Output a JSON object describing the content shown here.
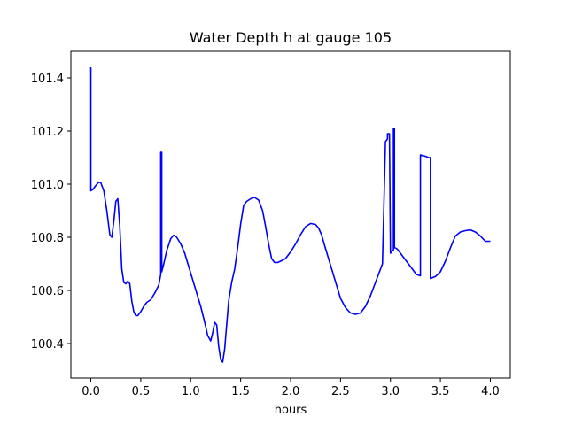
{
  "chart_data": {
    "type": "line",
    "title": "Water Depth h at gauge 105",
    "xlabel": "hours",
    "ylabel": "",
    "xlim": [
      -0.2,
      4.2
    ],
    "ylim": [
      100.27,
      101.5
    ],
    "x_ticks": [
      0.0,
      0.5,
      1.0,
      1.5,
      2.0,
      2.5,
      3.0,
      3.5,
      4.0
    ],
    "x_tick_labels": [
      "0.0",
      "0.5",
      "1.0",
      "1.5",
      "2.0",
      "2.5",
      "3.0",
      "3.5",
      "4.0"
    ],
    "y_ticks": [
      100.4,
      100.6,
      100.8,
      101.0,
      101.2,
      101.4
    ],
    "y_tick_labels": [
      "100.4",
      "100.6",
      "100.8",
      "101.0",
      "101.2",
      "101.4"
    ],
    "grid": false,
    "legend": "none",
    "series": [
      {
        "color": "#0000ff",
        "x": [
          0.0,
          0.0,
          0.0,
          0.02,
          0.05,
          0.08,
          0.1,
          0.13,
          0.16,
          0.19,
          0.21,
          0.23,
          0.25,
          0.27,
          0.29,
          0.31,
          0.33,
          0.35,
          0.37,
          0.39,
          0.41,
          0.43,
          0.45,
          0.47,
          0.5,
          0.53,
          0.56,
          0.6,
          0.64,
          0.68,
          0.7,
          0.7,
          0.71,
          0.71,
          0.71,
          0.73,
          0.76,
          0.8,
          0.83,
          0.86,
          0.9,
          0.94,
          0.98,
          1.02,
          1.06,
          1.1,
          1.14,
          1.17,
          1.2,
          1.22,
          1.24,
          1.26,
          1.28,
          1.3,
          1.32,
          1.34,
          1.36,
          1.38,
          1.41,
          1.44,
          1.47,
          1.5,
          1.53,
          1.56,
          1.6,
          1.64,
          1.68,
          1.72,
          1.75,
          1.78,
          1.81,
          1.84,
          1.87,
          1.9,
          1.95,
          2.0,
          2.05,
          2.1,
          2.15,
          2.2,
          2.25,
          2.28,
          2.31,
          2.34,
          2.38,
          2.42,
          2.46,
          2.5,
          2.55,
          2.6,
          2.65,
          2.7,
          2.75,
          2.8,
          2.84,
          2.88,
          2.92,
          2.95,
          2.97,
          2.97,
          2.99,
          3.0,
          3.0,
          3.02,
          3.03,
          3.03,
          3.04,
          3.04,
          3.05,
          3.05,
          3.07,
          3.1,
          3.14,
          3.18,
          3.22,
          3.26,
          3.3,
          3.3,
          3.3,
          3.35,
          3.38,
          3.4,
          3.4,
          3.4,
          3.45,
          3.5,
          3.55,
          3.6,
          3.65,
          3.7,
          3.75,
          3.8,
          3.85,
          3.9,
          3.95,
          4.0
        ],
        "y": [
          101.44,
          101.44,
          100.975,
          100.98,
          100.995,
          101.008,
          101.005,
          100.975,
          100.9,
          100.81,
          100.8,
          100.86,
          100.935,
          100.945,
          100.84,
          100.68,
          100.63,
          100.625,
          100.635,
          100.625,
          100.56,
          100.52,
          100.505,
          100.505,
          100.52,
          100.54,
          100.555,
          100.565,
          100.59,
          100.62,
          100.66,
          101.12,
          101.12,
          100.67,
          100.67,
          100.7,
          100.75,
          100.795,
          100.808,
          100.8,
          100.775,
          100.74,
          100.69,
          100.64,
          100.59,
          100.54,
          100.48,
          100.43,
          100.41,
          100.44,
          100.48,
          100.47,
          100.39,
          100.34,
          100.33,
          100.38,
          100.47,
          100.56,
          100.63,
          100.68,
          100.76,
          100.85,
          100.92,
          100.935,
          100.945,
          100.95,
          100.94,
          100.9,
          100.84,
          100.775,
          100.72,
          100.705,
          100.705,
          100.71,
          100.72,
          100.745,
          100.775,
          100.81,
          100.84,
          100.852,
          100.848,
          100.835,
          100.81,
          100.77,
          100.72,
          100.67,
          100.62,
          100.57,
          100.535,
          100.515,
          100.51,
          100.515,
          100.54,
          100.58,
          100.62,
          100.66,
          100.7,
          101.16,
          101.17,
          101.19,
          101.19,
          100.74,
          100.74,
          100.75,
          100.75,
          101.21,
          101.21,
          100.76,
          100.76,
          100.76,
          100.755,
          100.74,
          100.72,
          100.7,
          100.68,
          100.66,
          100.655,
          101.11,
          101.11,
          101.105,
          101.1,
          101.1,
          100.645,
          100.645,
          100.652,
          100.67,
          100.71,
          100.76,
          100.805,
          100.82,
          100.825,
          100.828,
          100.82,
          100.805,
          100.785,
          100.785
        ]
      }
    ]
  }
}
